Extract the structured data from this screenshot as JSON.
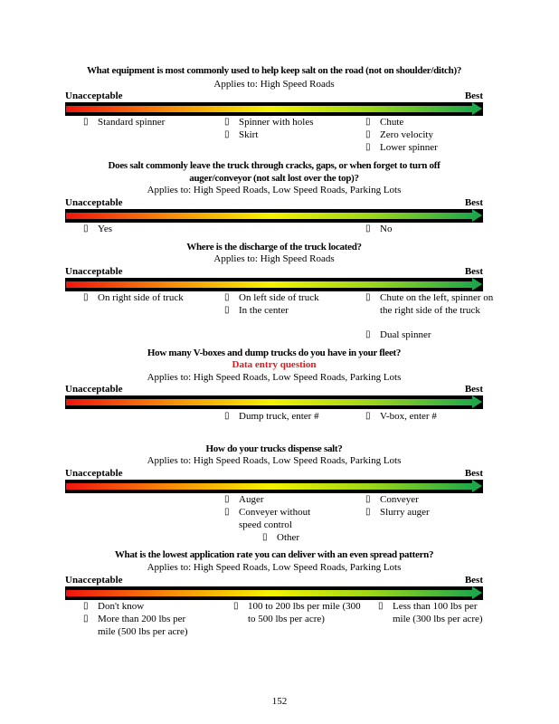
{
  "scale": {
    "low_label": "Unacceptable",
    "high_label": "Best",
    "gradient_colors": [
      "#f0140f",
      "#f78a0a",
      "#f5f200",
      "#9cd61a",
      "#1fa84a"
    ]
  },
  "checkbox_glyph": "▯",
  "questions": [
    {
      "title": [
        "What equipment is most commonly used to help keep salt on the road (not on shoulder/ditch)?"
      ],
      "applies": "Applies to: High Speed Roads",
      "options": [
        "Standard spinner",
        "Spinner with holes",
        "Skirt",
        "Chute",
        "Zero velocity",
        "Lower spinner"
      ]
    },
    {
      "title": [
        "Does salt commonly leave the truck through cracks, gaps, or when forget to turn off",
        "auger/conveyor (not salt lost over the top)?"
      ],
      "applies": "Applies to: High Speed Roads, Low Speed Roads, Parking Lots",
      "options": [
        "Yes",
        "No"
      ]
    },
    {
      "title": [
        "Where is the discharge of the truck located?"
      ],
      "applies": "Applies to: High Speed Roads",
      "options": [
        "On right side of truck",
        "On left side of truck",
        "In the center",
        "Chute on the left, spinner on the right side of the truck",
        "Dual spinner"
      ]
    },
    {
      "title": [
        "How many V-boxes and dump trucks do you have in your fleet?"
      ],
      "note": "Data entry question",
      "applies": "Applies to: High Speed Roads, Low Speed Roads, Parking Lots",
      "options": [
        "Dump truck, enter #",
        "V-box, enter #"
      ]
    },
    {
      "title": [
        "How do your trucks dispense salt?"
      ],
      "applies": "Applies to: High Speed Roads, Low Speed Roads, Parking Lots",
      "options": [
        "Auger",
        "Conveyer without speed control",
        "Conveyer",
        "Slurry auger",
        "Other"
      ]
    },
    {
      "title": [
        "What is the lowest application rate you can deliver with an even spread pattern?"
      ],
      "applies": "Applies to: High Speed Roads, Low Speed Roads, Parking Lots",
      "options": [
        "Don't know",
        "More than 200 lbs per mile (500 lbs per acre)",
        "100 to 200 lbs per mile (300 to 500 lbs per acre)",
        "Less than 100 lbs per mile (300 lbs per acre)"
      ]
    }
  ],
  "page_number": "152"
}
